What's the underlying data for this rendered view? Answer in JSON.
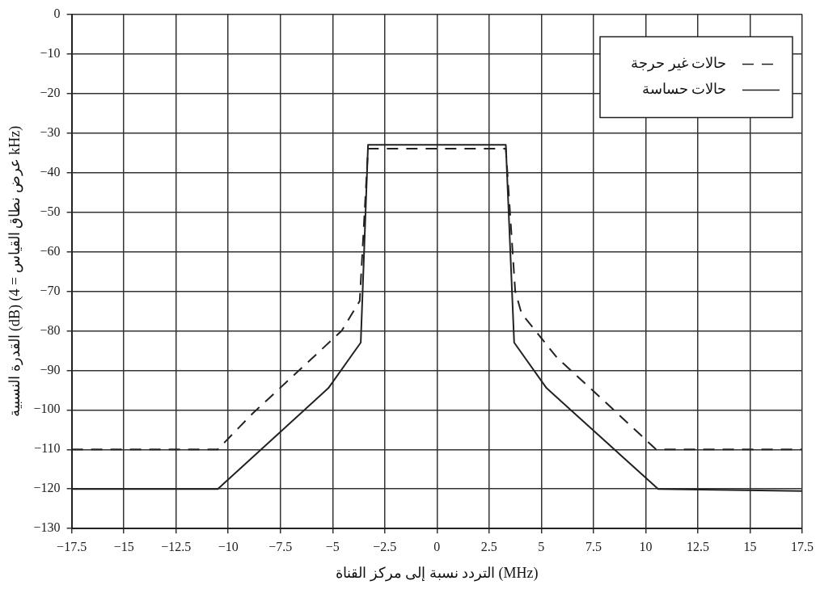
{
  "chart_data": {
    "type": "line",
    "xlabel": "التردد نسبة إلى مركز القناة (MHz)",
    "ylabel": "القدرة النسبية (dB) (عرض نطاق القياس = 4 kHz)",
    "xlim": [
      -17.5,
      17.5
    ],
    "xticks": [
      {
        "value": -17.5,
        "label": "−17.5"
      },
      {
        "value": -15,
        "label": "−15"
      },
      {
        "value": -12.5,
        "label": "−12.5"
      },
      {
        "value": -10,
        "label": "−10"
      },
      {
        "value": -7.5,
        "label": "−7.5"
      },
      {
        "value": -5,
        "label": "−5"
      },
      {
        "value": -2.5,
        "label": "−2.5"
      },
      0,
      2.5,
      5,
      7.5,
      10,
      12.5,
      15,
      17.5
    ],
    "ylim": [
      -130,
      0
    ],
    "yticks": [
      0,
      {
        "value": -10,
        "label": "−10"
      },
      {
        "value": -20,
        "label": "−20"
      },
      {
        "value": -30,
        "label": "−30"
      },
      {
        "value": -40,
        "label": "−40"
      },
      {
        "value": -50,
        "label": "−50"
      },
      {
        "value": -60,
        "label": "−60"
      },
      {
        "value": -70,
        "label": "−70"
      },
      {
        "value": -80,
        "label": "−80"
      },
      {
        "value": -90,
        "label": "−90"
      },
      {
        "value": -100,
        "label": "−100"
      },
      {
        "value": -110,
        "label": "−110"
      },
      {
        "value": -120,
        "label": "−120"
      },
      {
        "value": -130,
        "label": "−130"
      }
    ],
    "grid": true,
    "legend": "top right",
    "marker": "none",
    "series": [
      {
        "name": "حالات غير حرجة",
        "color": "#222222",
        "line_style": "dashed",
        "x": [
          -17.5,
          -10.5,
          -8.85,
          -4.56,
          -3.7,
          -3.3,
          3.3,
          3.75,
          4.05,
          5.75,
          7.94,
          10.5,
          17.5
        ],
        "values": [
          -110,
          -110,
          -101,
          -80,
          -72.5,
          -34,
          -34,
          -70,
          -75.6,
          -86.8,
          -97.4,
          -110,
          -110
        ]
      },
      {
        "name": "حالات حساسة",
        "color": "#222222",
        "line_style": "solid",
        "x": [
          -17.5,
          -10.5,
          -5.2,
          -3.65,
          -3.3,
          3.3,
          3.7,
          5.25,
          10.6,
          17.5
        ],
        "values": [
          -120,
          -120,
          -94.5,
          -83,
          -33,
          -33,
          -83,
          -94.5,
          -120,
          -120.5
        ]
      }
    ]
  }
}
